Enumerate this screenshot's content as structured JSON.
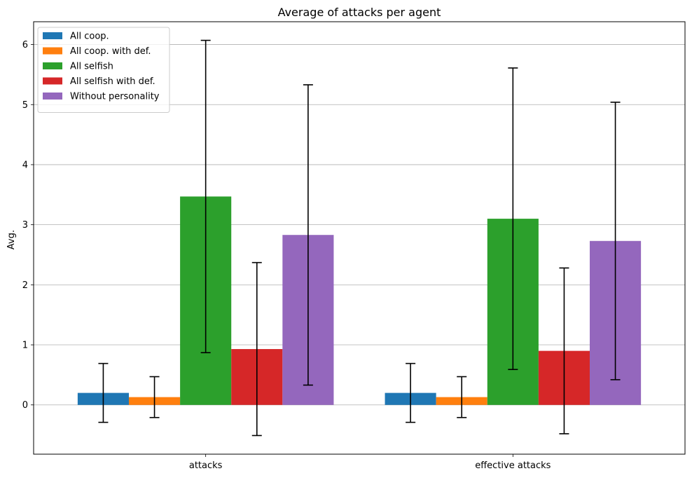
{
  "chart_data": {
    "type": "bar",
    "title": "Average of attacks per agent",
    "xlabel": "",
    "ylabel": "Avg.",
    "categories": [
      "attacks",
      "effective attacks"
    ],
    "ylim": [
      -0.82,
      6.38
    ],
    "yticks": [
      0,
      1,
      2,
      3,
      4,
      5,
      6
    ],
    "grid": "y",
    "legend_position": "top-left",
    "series": [
      {
        "name": "All coop.",
        "color": "#1f77b4",
        "values": [
          0.2,
          0.2
        ],
        "errors": [
          0.49,
          0.49
        ]
      },
      {
        "name": "All coop. with def.",
        "color": "#ff7f0e",
        "values": [
          0.13,
          0.13
        ],
        "errors": [
          0.34,
          0.34
        ]
      },
      {
        "name": "All selfish",
        "color": "#2ca02c",
        "values": [
          3.47,
          3.1
        ],
        "errors": [
          2.6,
          2.51
        ]
      },
      {
        "name": "All selfish with def.",
        "color": "#d62728",
        "values": [
          0.93,
          0.9
        ],
        "errors": [
          1.44,
          1.38
        ]
      },
      {
        "name": "Without personality",
        "color": "#9467bd",
        "values": [
          2.83,
          2.73
        ],
        "errors": [
          2.5,
          2.31
        ]
      }
    ]
  }
}
